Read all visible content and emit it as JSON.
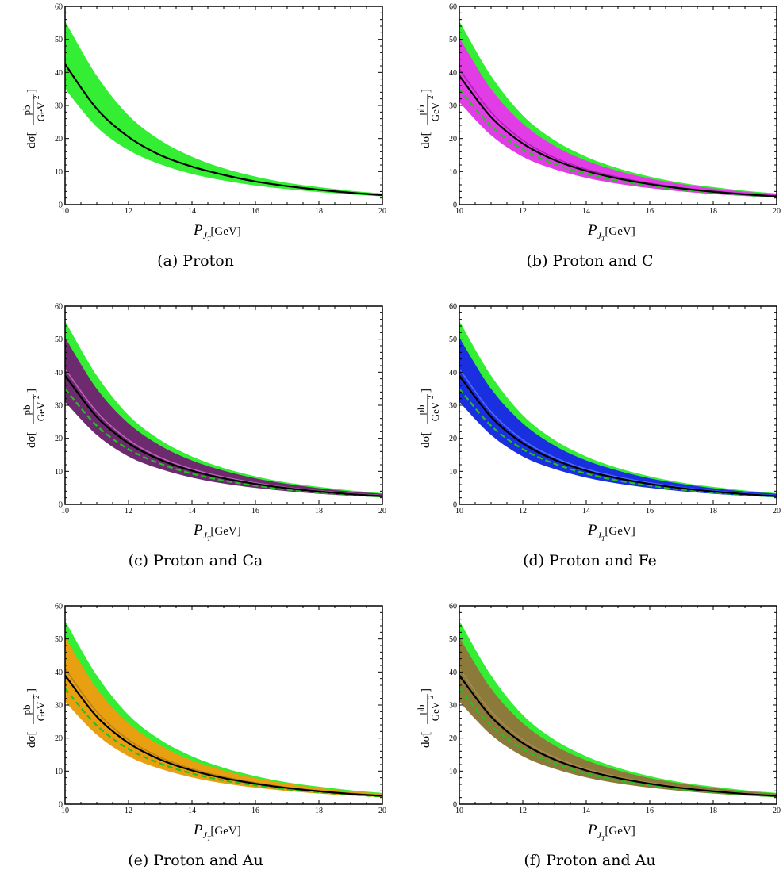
{
  "chart_data": [
    {
      "type": "line",
      "caption": "(a)  Proton",
      "xlabel_main": "P",
      "xlabel_sub": "J",
      "xlabel_subsub": "T",
      "xlabel_unit": "[GeV]",
      "ylabel_prefix": "dσ[",
      "ylabel_num": "pb",
      "ylabel_den": "GeV",
      "ylabel_exp": "2",
      "ylabel_suffix": "]",
      "xlim": [
        10,
        20
      ],
      "ylim": [
        0,
        60
      ],
      "xticks": [
        "10",
        "12",
        "14",
        "16",
        "18",
        "20"
      ],
      "yticks": [
        "0",
        "10",
        "20",
        "30",
        "40",
        "50",
        "60"
      ],
      "x": [
        10,
        11,
        12,
        13,
        14,
        15,
        16,
        17,
        18,
        19,
        20
      ],
      "proton_central": [
        42.5,
        29.0,
        20.5,
        15.0,
        11.5,
        9.0,
        7.0,
        5.6,
        4.5,
        3.6,
        2.9
      ],
      "proton_band_low": [
        35.0,
        23.5,
        16.5,
        12.2,
        9.3,
        7.3,
        5.8,
        4.7,
        3.8,
        3.1,
        2.5
      ],
      "proton_band_high": [
        55.5,
        39.0,
        27.0,
        19.5,
        14.5,
        11.0,
        8.5,
        6.6,
        5.3,
        4.2,
        3.4
      ],
      "nuclear": null
    },
    {
      "type": "line",
      "caption": "(b)  Proton and C",
      "xlabel_main": "P",
      "xlabel_sub": "J",
      "xlabel_subsub": "T",
      "xlabel_unit": "[GeV]",
      "ylabel_prefix": "dσ[",
      "ylabel_num": "pb",
      "ylabel_den": "GeV",
      "ylabel_exp": "2",
      "ylabel_suffix": "]",
      "xlim": [
        10,
        20
      ],
      "ylim": [
        0,
        60
      ],
      "xticks": [
        "10",
        "12",
        "14",
        "16",
        "18",
        "20"
      ],
      "yticks": [
        "0",
        "10",
        "20",
        "30",
        "40",
        "50",
        "60"
      ],
      "x": [
        10,
        11,
        12,
        13,
        14,
        15,
        16,
        17,
        18,
        19,
        20
      ],
      "proton_band_low": [
        35.0,
        23.5,
        16.5,
        12.2,
        9.3,
        7.3,
        5.8,
        4.7,
        3.8,
        3.1,
        2.5
      ],
      "proton_band_high": [
        55.5,
        39.0,
        27.0,
        19.5,
        14.5,
        11.0,
        8.5,
        6.6,
        5.3,
        4.2,
        3.4
      ],
      "nuclear": {
        "color": "#e23ce6",
        "central_color": "#b01fb5",
        "band_low": [
          31.0,
          21.0,
          14.5,
          10.7,
          8.1,
          6.3,
          5.0,
          4.0,
          3.2,
          2.6,
          2.1
        ],
        "band_high": [
          50.5,
          35.0,
          24.5,
          17.8,
          13.3,
          10.2,
          7.9,
          6.2,
          4.9,
          3.9,
          3.2
        ],
        "central": [
          41.0,
          28.0,
          19.5,
          14.2,
          10.7,
          8.3,
          6.5,
          5.1,
          4.1,
          3.3,
          2.7
        ],
        "black": [
          39.0,
          26.5,
          18.5,
          13.5,
          10.2,
          7.9,
          6.2,
          4.9,
          3.9,
          3.1,
          2.5
        ],
        "dashed": [
          35.0,
          23.8,
          16.7,
          12.3,
          9.3,
          7.2,
          5.7,
          4.5,
          3.6,
          2.9,
          2.3
        ]
      }
    },
    {
      "type": "line",
      "caption": "(c)  Proton and Ca",
      "xlabel_main": "P",
      "xlabel_sub": "J",
      "xlabel_subsub": "T",
      "xlabel_unit": "[GeV]",
      "ylabel_prefix": "dσ[",
      "ylabel_num": "pb",
      "ylabel_den": "GeV",
      "ylabel_exp": "2",
      "ylabel_suffix": "]",
      "xlim": [
        10,
        20
      ],
      "ylim": [
        0,
        60
      ],
      "xticks": [
        "10",
        "12",
        "14",
        "16",
        "18",
        "20"
      ],
      "yticks": [
        "0",
        "10",
        "20",
        "30",
        "40",
        "50",
        "60"
      ],
      "x": [
        10,
        11,
        12,
        13,
        14,
        15,
        16,
        17,
        18,
        19,
        20
      ],
      "proton_band_low": [
        35.0,
        23.5,
        16.5,
        12.2,
        9.3,
        7.3,
        5.8,
        4.7,
        3.8,
        3.1,
        2.5
      ],
      "proton_band_high": [
        55.5,
        39.0,
        27.0,
        19.5,
        14.5,
        11.0,
        8.5,
        6.6,
        5.3,
        4.2,
        3.4
      ],
      "nuclear": {
        "color": "#6e2a6e",
        "central_color": "#c060c0",
        "band_low": [
          31.0,
          21.0,
          14.5,
          10.7,
          8.1,
          6.3,
          5.0,
          4.0,
          3.2,
          2.6,
          2.1
        ],
        "band_high": [
          50.5,
          35.0,
          24.5,
          17.8,
          13.3,
          10.2,
          7.9,
          6.2,
          4.9,
          3.9,
          3.2
        ],
        "central": [
          41.0,
          28.0,
          19.5,
          14.2,
          10.7,
          8.3,
          6.5,
          5.1,
          4.1,
          3.3,
          2.7
        ],
        "black": [
          39.0,
          26.5,
          18.5,
          13.5,
          10.2,
          7.9,
          6.2,
          4.9,
          3.9,
          3.1,
          2.5
        ],
        "dashed": [
          35.0,
          23.8,
          16.7,
          12.3,
          9.3,
          7.2,
          5.7,
          4.5,
          3.6,
          2.9,
          2.3
        ]
      }
    },
    {
      "type": "line",
      "caption": "(d)  Proton and Fe",
      "xlabel_main": "P",
      "xlabel_sub": "J",
      "xlabel_subsub": "T",
      "xlabel_unit": "[GeV]",
      "ylabel_prefix": "dσ[",
      "ylabel_num": "pb",
      "ylabel_den": "GeV",
      "ylabel_exp": "2",
      "ylabel_suffix": "]",
      "xlim": [
        10,
        20
      ],
      "ylim": [
        0,
        60
      ],
      "xticks": [
        "10",
        "12",
        "14",
        "16",
        "18",
        "20"
      ],
      "yticks": [
        "0",
        "10",
        "20",
        "30",
        "40",
        "50",
        "60"
      ],
      "x": [
        10,
        11,
        12,
        13,
        14,
        15,
        16,
        17,
        18,
        19,
        20
      ],
      "proton_band_low": [
        35.0,
        23.5,
        16.5,
        12.2,
        9.3,
        7.3,
        5.8,
        4.7,
        3.8,
        3.1,
        2.5
      ],
      "proton_band_high": [
        55.5,
        39.0,
        27.0,
        19.5,
        14.5,
        11.0,
        8.5,
        6.6,
        5.3,
        4.2,
        3.4
      ],
      "nuclear": {
        "color": "#1a2fe0",
        "central_color": "#4f6bff",
        "band_low": [
          31.0,
          21.0,
          14.5,
          10.7,
          8.1,
          6.3,
          5.0,
          4.0,
          3.2,
          2.6,
          2.1
        ],
        "band_high": [
          50.5,
          35.0,
          24.5,
          17.8,
          13.3,
          10.2,
          7.9,
          6.2,
          4.9,
          3.9,
          3.2
        ],
        "central": [
          41.0,
          28.0,
          19.5,
          14.2,
          10.7,
          8.3,
          6.5,
          5.1,
          4.1,
          3.3,
          2.7
        ],
        "black": [
          39.0,
          26.5,
          18.5,
          13.5,
          10.2,
          7.9,
          6.2,
          4.9,
          3.9,
          3.1,
          2.5
        ],
        "dashed": [
          35.0,
          23.8,
          16.7,
          12.3,
          9.3,
          7.2,
          5.7,
          4.5,
          3.6,
          2.9,
          2.3
        ]
      }
    },
    {
      "type": "line",
      "caption": "(e)  Proton and Au",
      "xlabel_main": "P",
      "xlabel_sub": "J",
      "xlabel_subsub": "T",
      "xlabel_unit": "[GeV]",
      "ylabel_prefix": "dσ[",
      "ylabel_num": "pb",
      "ylabel_den": "GeV",
      "ylabel_exp": "2",
      "ylabel_suffix": "]",
      "xlim": [
        10,
        20
      ],
      "ylim": [
        0,
        60
      ],
      "xticks": [
        "10",
        "12",
        "14",
        "16",
        "18",
        "20"
      ],
      "yticks": [
        "0",
        "10",
        "20",
        "30",
        "40",
        "50",
        "60"
      ],
      "x": [
        10,
        11,
        12,
        13,
        14,
        15,
        16,
        17,
        18,
        19,
        20
      ],
      "proton_band_low": [
        35.0,
        23.5,
        16.5,
        12.2,
        9.3,
        7.3,
        5.8,
        4.7,
        3.8,
        3.1,
        2.5
      ],
      "proton_band_high": [
        55.5,
        39.0,
        27.0,
        19.5,
        14.5,
        11.0,
        8.5,
        6.6,
        5.3,
        4.2,
        3.4
      ],
      "nuclear": {
        "color": "#e8a010",
        "central_color": "#b8801a",
        "band_low": [
          31.0,
          21.0,
          14.5,
          10.7,
          8.1,
          6.3,
          5.0,
          4.0,
          3.2,
          2.6,
          2.1
        ],
        "band_high": [
          50.5,
          35.0,
          24.5,
          17.8,
          13.3,
          10.2,
          7.9,
          6.2,
          4.9,
          3.9,
          3.2
        ],
        "central": [
          41.0,
          28.0,
          19.5,
          14.2,
          10.7,
          8.3,
          6.5,
          5.1,
          4.1,
          3.3,
          2.7
        ],
        "black": [
          39.0,
          26.5,
          18.5,
          13.5,
          10.2,
          7.9,
          6.2,
          4.9,
          3.9,
          3.1,
          2.5
        ],
        "dashed": [
          35.0,
          23.8,
          16.7,
          12.3,
          9.3,
          7.2,
          5.7,
          4.5,
          3.6,
          2.9,
          2.3
        ]
      }
    },
    {
      "type": "line",
      "caption": "(f)  Proton and Au",
      "xlabel_main": "P",
      "xlabel_sub": "J",
      "xlabel_subsub": "T",
      "xlabel_unit": "[GeV]",
      "ylabel_prefix": "dσ[",
      "ylabel_num": "pb",
      "ylabel_den": "GeV",
      "ylabel_exp": "2",
      "ylabel_suffix": "]",
      "xlim": [
        10,
        20
      ],
      "ylim": [
        0,
        60
      ],
      "xticks": [
        "10",
        "12",
        "14",
        "16",
        "18",
        "20"
      ],
      "yticks": [
        "0",
        "10",
        "20",
        "30",
        "40",
        "50",
        "60"
      ],
      "x": [
        10,
        11,
        12,
        13,
        14,
        15,
        16,
        17,
        18,
        19,
        20
      ],
      "proton_band_low": [
        35.0,
        23.5,
        16.5,
        12.2,
        9.3,
        7.3,
        5.8,
        4.7,
        3.8,
        3.1,
        2.5
      ],
      "proton_band_high": [
        55.5,
        39.0,
        27.0,
        19.5,
        14.5,
        11.0,
        8.5,
        6.6,
        5.3,
        4.2,
        3.4
      ],
      "nuclear": {
        "color": "#8b7a3a",
        "central_color": "#a88a50",
        "band_low": [
          31.0,
          21.0,
          14.5,
          10.7,
          8.1,
          6.3,
          5.0,
          4.0,
          3.2,
          2.6,
          2.1
        ],
        "band_high": [
          50.5,
          35.0,
          24.5,
          17.8,
          13.3,
          10.2,
          7.9,
          6.2,
          4.9,
          3.9,
          3.2
        ],
        "central": [
          41.0,
          28.0,
          19.5,
          14.2,
          10.7,
          8.3,
          6.5,
          5.1,
          4.1,
          3.3,
          2.7
        ],
        "black": [
          39.0,
          26.5,
          18.5,
          13.5,
          10.2,
          7.9,
          6.2,
          4.9,
          3.9,
          3.1,
          2.5
        ],
        "dashed": [
          35.0,
          23.8,
          16.7,
          12.3,
          9.3,
          7.2,
          5.7,
          4.5,
          3.6,
          2.9,
          2.3
        ]
      }
    }
  ],
  "colors": {
    "proton_band": "#33ee33",
    "dashed_line": "#22c022",
    "central_line": "#000000"
  }
}
